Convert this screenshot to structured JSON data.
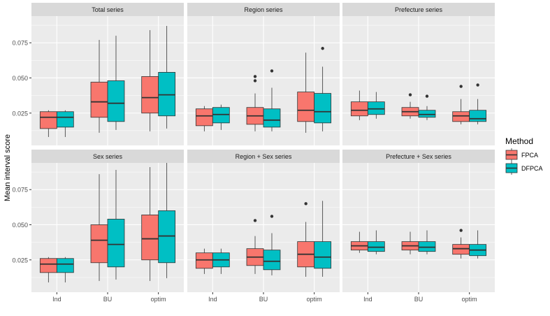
{
  "chart_data": {
    "type": "box",
    "ylabel": "Mean interval score",
    "xlabel": "",
    "categories": [
      "Ind",
      "BU",
      "optim"
    ],
    "ylim": [
      0.002,
      0.094
    ],
    "yticks": [
      0.025,
      0.05,
      0.075
    ],
    "ytick_labels": [
      "0.025",
      "0.050",
      "0.075"
    ],
    "grid": true,
    "legend": {
      "title": "Method",
      "position": "right",
      "entries": [
        {
          "name": "FPCA",
          "color": "#F8766D"
        },
        {
          "name": "DFPCA",
          "color": "#00BFC4"
        }
      ]
    },
    "panels": [
      {
        "title": "Total series",
        "boxes": {
          "FPCA": [
            {
              "min": 0.008,
              "q1": 0.014,
              "median": 0.022,
              "q3": 0.026,
              "max": 0.027,
              "outliers": []
            },
            {
              "min": 0.011,
              "q1": 0.022,
              "median": 0.033,
              "q3": 0.047,
              "max": 0.077,
              "outliers": []
            },
            {
              "min": 0.012,
              "q1": 0.025,
              "median": 0.036,
              "q3": 0.051,
              "max": 0.084,
              "outliers": []
            }
          ],
          "DFPCA": [
            {
              "min": 0.008,
              "q1": 0.015,
              "median": 0.022,
              "q3": 0.026,
              "max": 0.027,
              "outliers": []
            },
            {
              "min": 0.013,
              "q1": 0.019,
              "median": 0.032,
              "q3": 0.048,
              "max": 0.08,
              "outliers": []
            },
            {
              "min": 0.014,
              "q1": 0.023,
              "median": 0.038,
              "q3": 0.054,
              "max": 0.087,
              "outliers": []
            }
          ]
        }
      },
      {
        "title": "Region series",
        "boxes": {
          "FPCA": [
            {
              "min": 0.012,
              "q1": 0.016,
              "median": 0.023,
              "q3": 0.028,
              "max": 0.03,
              "outliers": []
            },
            {
              "min": 0.012,
              "q1": 0.017,
              "median": 0.023,
              "q3": 0.029,
              "max": 0.039,
              "outliers": [
                0.048,
                0.051
              ]
            },
            {
              "min": 0.011,
              "q1": 0.019,
              "median": 0.027,
              "q3": 0.04,
              "max": 0.068,
              "outliers": []
            }
          ],
          "DFPCA": [
            {
              "min": 0.013,
              "q1": 0.018,
              "median": 0.024,
              "q3": 0.029,
              "max": 0.031,
              "outliers": []
            },
            {
              "min": 0.012,
              "q1": 0.015,
              "median": 0.02,
              "q3": 0.028,
              "max": 0.043,
              "outliers": [
                0.055
              ]
            },
            {
              "min": 0.012,
              "q1": 0.018,
              "median": 0.026,
              "q3": 0.039,
              "max": 0.058,
              "outliers": [
                0.071
              ]
            }
          ]
        }
      },
      {
        "title": "Prefecture series",
        "boxes": {
          "FPCA": [
            {
              "min": 0.02,
              "q1": 0.023,
              "median": 0.027,
              "q3": 0.033,
              "max": 0.041,
              "outliers": []
            },
            {
              "min": 0.021,
              "q1": 0.023,
              "median": 0.026,
              "q3": 0.029,
              "max": 0.033,
              "outliers": [
                0.038
              ]
            },
            {
              "min": 0.017,
              "q1": 0.019,
              "median": 0.023,
              "q3": 0.026,
              "max": 0.035,
              "outliers": [
                0.044
              ]
            }
          ],
          "DFPCA": [
            {
              "min": 0.021,
              "q1": 0.024,
              "median": 0.028,
              "q3": 0.033,
              "max": 0.04,
              "outliers": []
            },
            {
              "min": 0.02,
              "q1": 0.022,
              "median": 0.024,
              "q3": 0.027,
              "max": 0.03,
              "outliers": [
                0.037
              ]
            },
            {
              "min": 0.017,
              "q1": 0.019,
              "median": 0.021,
              "q3": 0.027,
              "max": 0.035,
              "outliers": [
                0.045
              ]
            }
          ]
        }
      },
      {
        "title": "Sex series",
        "boxes": {
          "FPCA": [
            {
              "min": 0.009,
              "q1": 0.016,
              "median": 0.022,
              "q3": 0.026,
              "max": 0.027,
              "outliers": []
            },
            {
              "min": 0.01,
              "q1": 0.023,
              "median": 0.039,
              "q3": 0.05,
              "max": 0.086,
              "outliers": []
            },
            {
              "min": 0.01,
              "q1": 0.025,
              "median": 0.04,
              "q3": 0.057,
              "max": 0.091,
              "outliers": []
            }
          ],
          "DFPCA": [
            {
              "min": 0.009,
              "q1": 0.016,
              "median": 0.022,
              "q3": 0.026,
              "max": 0.027,
              "outliers": []
            },
            {
              "min": 0.011,
              "q1": 0.02,
              "median": 0.036,
              "q3": 0.054,
              "max": 0.089,
              "outliers": []
            },
            {
              "min": 0.012,
              "q1": 0.023,
              "median": 0.042,
              "q3": 0.06,
              "max": 0.094,
              "outliers": []
            }
          ]
        }
      },
      {
        "title": "Region + Sex series",
        "boxes": {
          "FPCA": [
            {
              "min": 0.015,
              "q1": 0.019,
              "median": 0.025,
              "q3": 0.03,
              "max": 0.033,
              "outliers": []
            },
            {
              "min": 0.015,
              "q1": 0.021,
              "median": 0.027,
              "q3": 0.033,
              "max": 0.042,
              "outliers": [
                0.053
              ]
            },
            {
              "min": 0.013,
              "q1": 0.02,
              "median": 0.029,
              "q3": 0.038,
              "max": 0.052,
              "outliers": [
                0.065
              ]
            }
          ],
          "DFPCA": [
            {
              "min": 0.015,
              "q1": 0.02,
              "median": 0.025,
              "q3": 0.03,
              "max": 0.033,
              "outliers": []
            },
            {
              "min": 0.014,
              "q1": 0.018,
              "median": 0.024,
              "q3": 0.032,
              "max": 0.044,
              "outliers": [
                0.056
              ]
            },
            {
              "min": 0.013,
              "q1": 0.019,
              "median": 0.027,
              "q3": 0.038,
              "max": 0.067,
              "outliers": []
            }
          ]
        }
      },
      {
        "title": "Prefecture + Sex series",
        "boxes": {
          "FPCA": [
            {
              "min": 0.03,
              "q1": 0.032,
              "median": 0.035,
              "q3": 0.038,
              "max": 0.045,
              "outliers": []
            },
            {
              "min": 0.029,
              "q1": 0.032,
              "median": 0.035,
              "q3": 0.038,
              "max": 0.045,
              "outliers": []
            },
            {
              "min": 0.026,
              "q1": 0.029,
              "median": 0.033,
              "q3": 0.036,
              "max": 0.041,
              "outliers": [
                0.046
              ]
            }
          ],
          "DFPCA": [
            {
              "min": 0.029,
              "q1": 0.031,
              "median": 0.034,
              "q3": 0.038,
              "max": 0.046,
              "outliers": []
            },
            {
              "min": 0.029,
              "q1": 0.031,
              "median": 0.034,
              "q3": 0.038,
              "max": 0.046,
              "outliers": []
            },
            {
              "min": 0.026,
              "q1": 0.028,
              "median": 0.032,
              "q3": 0.036,
              "max": 0.046,
              "outliers": []
            }
          ]
        }
      }
    ]
  }
}
